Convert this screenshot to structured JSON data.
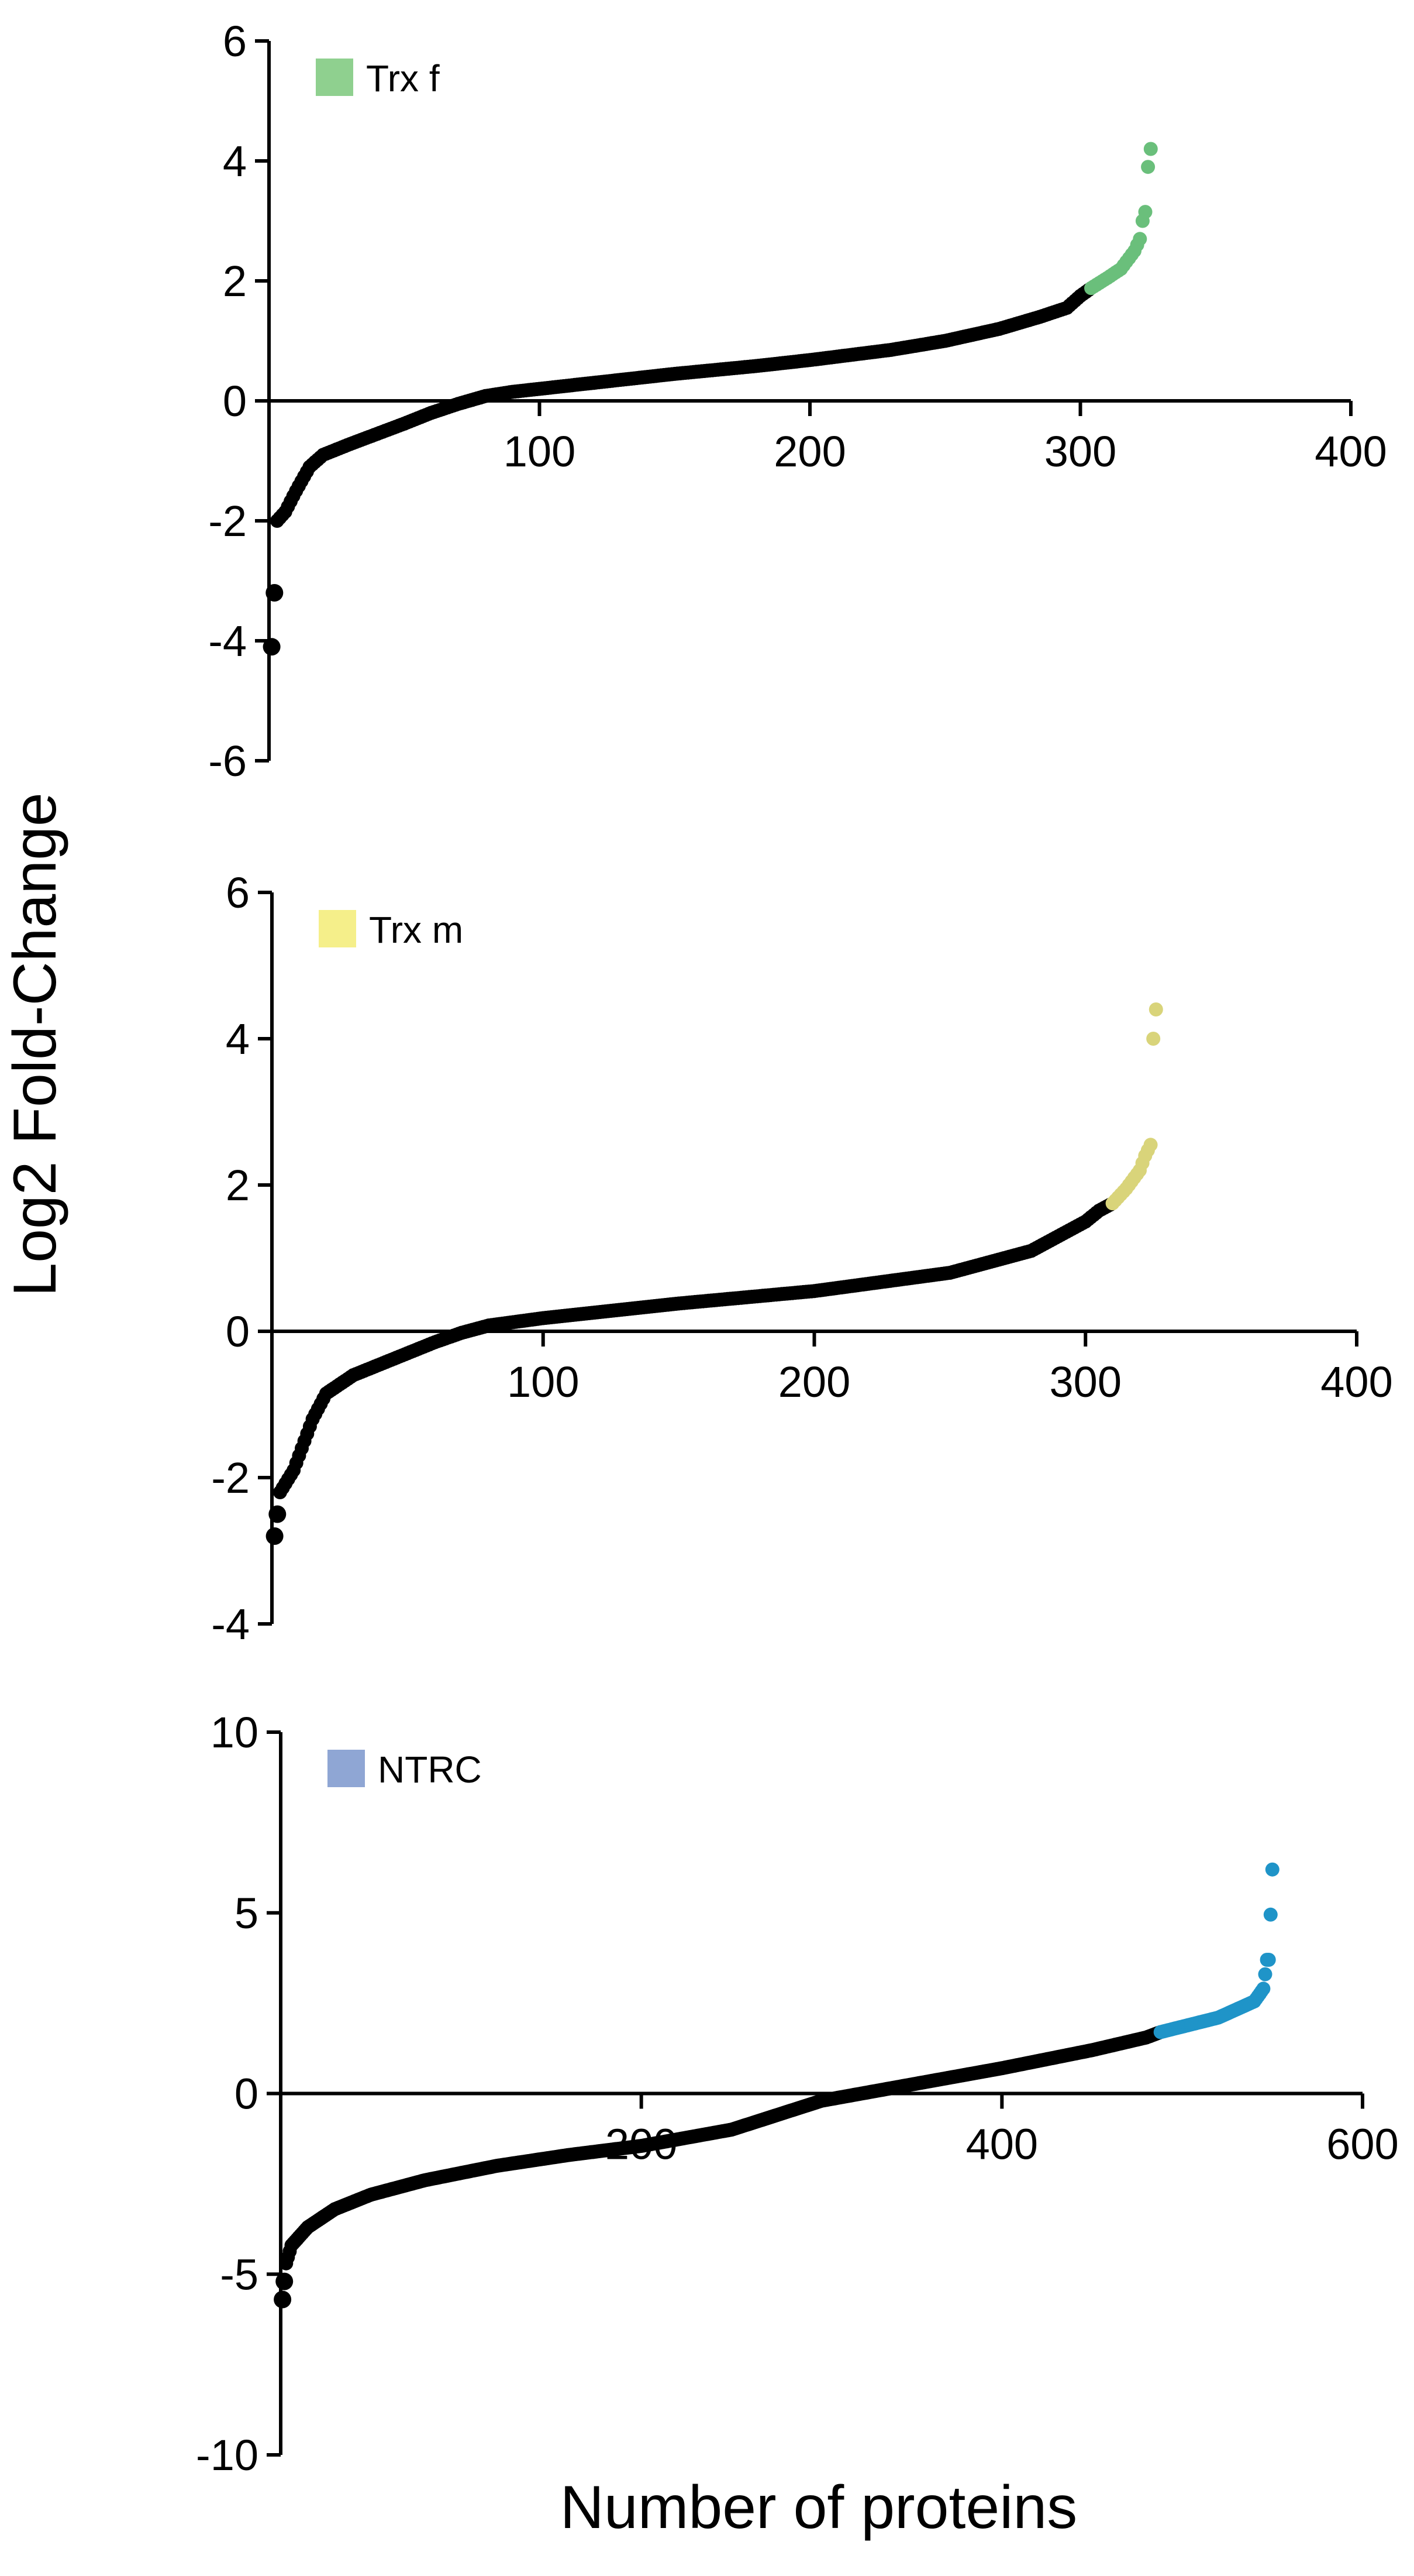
{
  "y_axis_title": "Log2 Fold-Change",
  "x_axis_title": "Number of proteins",
  "chart_data": [
    {
      "type": "scatter",
      "legend": "Trx f",
      "highlight_color": "#6abf7b",
      "legend_swatch_color": "#8fd08f",
      "base_color": "#000000",
      "xlim": [
        0,
        400
      ],
      "ylim": [
        -6,
        6
      ],
      "x_ticks": [
        100,
        200,
        300,
        400
      ],
      "x_tick_labels": [
        "100",
        "200",
        "300",
        "400"
      ],
      "y_ticks": [
        -6,
        -4,
        -2,
        0,
        2,
        4,
        6
      ],
      "y_tick_labels": [
        "-6",
        "-4",
        "-2",
        "0",
        "2",
        "4",
        "6"
      ],
      "n_points": 326,
      "highlight_from": 304,
      "curve": [
        [
          1,
          -4.1
        ],
        [
          2,
          -3.2
        ],
        [
          3,
          -2.0
        ],
        [
          6,
          -1.85
        ],
        [
          10,
          -1.5
        ],
        [
          15,
          -1.1
        ],
        [
          20,
          -0.9
        ],
        [
          30,
          -0.72
        ],
        [
          40,
          -0.55
        ],
        [
          50,
          -0.38
        ],
        [
          60,
          -0.2
        ],
        [
          70,
          -0.05
        ],
        [
          80,
          0.08
        ],
        [
          90,
          0.15
        ],
        [
          100,
          0.2
        ],
        [
          120,
          0.3
        ],
        [
          150,
          0.45
        ],
        [
          180,
          0.58
        ],
        [
          200,
          0.68
        ],
        [
          230,
          0.85
        ],
        [
          250,
          1.0
        ],
        [
          270,
          1.2
        ],
        [
          285,
          1.4
        ],
        [
          295,
          1.55
        ],
        [
          300,
          1.75
        ],
        [
          304,
          1.88
        ],
        [
          310,
          2.05
        ],
        [
          315,
          2.2
        ],
        [
          320,
          2.5
        ],
        [
          322,
          2.7
        ],
        [
          323,
          3.0
        ],
        [
          324,
          3.15
        ],
        [
          325,
          3.9
        ],
        [
          326,
          4.2
        ]
      ]
    },
    {
      "type": "scatter",
      "legend": "Trx m",
      "highlight_color": "#d9d47a",
      "legend_swatch_color": "#f5ef8a",
      "base_color": "#000000",
      "xlim": [
        0,
        400
      ],
      "ylim": [
        -4,
        6
      ],
      "x_ticks": [
        100,
        200,
        300,
        400
      ],
      "x_tick_labels": [
        "100",
        "200",
        "300",
        "400"
      ],
      "y_ticks": [
        -4,
        -2,
        0,
        2,
        4,
        6
      ],
      "y_tick_labels": [
        "-4",
        "-2",
        "0",
        "2",
        "4",
        "6"
      ],
      "n_points": 326,
      "highlight_from": 310,
      "curve": [
        [
          1,
          -2.8
        ],
        [
          3,
          -2.2
        ],
        [
          8,
          -1.9
        ],
        [
          15,
          -1.2
        ],
        [
          20,
          -0.85
        ],
        [
          30,
          -0.6
        ],
        [
          40,
          -0.45
        ],
        [
          50,
          -0.3
        ],
        [
          60,
          -0.15
        ],
        [
          70,
          -0.02
        ],
        [
          80,
          0.08
        ],
        [
          100,
          0.18
        ],
        [
          150,
          0.38
        ],
        [
          200,
          0.55
        ],
        [
          250,
          0.8
        ],
        [
          280,
          1.1
        ],
        [
          290,
          1.3
        ],
        [
          300,
          1.5
        ],
        [
          305,
          1.65
        ],
        [
          310,
          1.75
        ],
        [
          315,
          1.95
        ],
        [
          320,
          2.2
        ],
        [
          322,
          2.4
        ],
        [
          324,
          2.55
        ],
        [
          325,
          4.0
        ],
        [
          326,
          4.4
        ]
      ]
    },
    {
      "type": "scatter",
      "legend": "NTRC",
      "highlight_color": "#1f94c8",
      "legend_swatch_color": "#8fa6d4",
      "base_color": "#000000",
      "xlim": [
        0,
        600
      ],
      "ylim": [
        -10,
        10
      ],
      "x_ticks": [
        200,
        400,
        600
      ],
      "x_tick_labels": [
        "200",
        "400",
        "600"
      ],
      "y_ticks": [
        -10,
        -5,
        0,
        5,
        10
      ],
      "y_tick_labels": [
        "-10",
        "-5",
        "0",
        "5",
        "10"
      ],
      "n_points": 550,
      "highlight_from": 488,
      "curve": [
        [
          1,
          -5.7
        ],
        [
          3,
          -4.7
        ],
        [
          6,
          -4.2
        ],
        [
          15,
          -3.7
        ],
        [
          30,
          -3.2
        ],
        [
          50,
          -2.8
        ],
        [
          80,
          -2.4
        ],
        [
          120,
          -2.0
        ],
        [
          160,
          -1.7
        ],
        [
          200,
          -1.45
        ],
        [
          250,
          -1.0
        ],
        [
          300,
          -0.2
        ],
        [
          350,
          0.25
        ],
        [
          400,
          0.7
        ],
        [
          450,
          1.2
        ],
        [
          480,
          1.55
        ],
        [
          488,
          1.7
        ],
        [
          500,
          1.85
        ],
        [
          520,
          2.1
        ],
        [
          540,
          2.55
        ],
        [
          545,
          2.9
        ],
        [
          547,
          3.7
        ],
        [
          548,
          3.7
        ],
        [
          550,
          6.2
        ]
      ]
    }
  ]
}
